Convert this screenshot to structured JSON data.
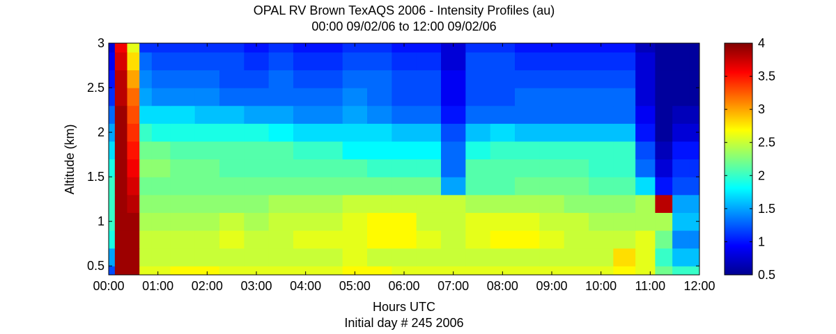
{
  "chart_data": {
    "type": "heatmap",
    "title": "OPAL RV Brown TexAQS 2006 - Intensity Profiles (au)",
    "subtitle": "00:00 09/02/06 to 12:00 09/02/06",
    "xlabel": "Hours UTC",
    "xlabel2": "Initial day # 245  2006",
    "ylabel": "Altitude (km)",
    "x_unit": "hours",
    "xlim": [
      0,
      12
    ],
    "ylim": [
      0.4,
      3.0
    ],
    "x_ticks": [
      {
        "value": 0,
        "label": "00:00"
      },
      {
        "value": 1,
        "label": "01:00"
      },
      {
        "value": 2,
        "label": "02:00"
      },
      {
        "value": 3,
        "label": "03:00"
      },
      {
        "value": 4,
        "label": "04:00"
      },
      {
        "value": 5,
        "label": "05:00"
      },
      {
        "value": 6,
        "label": "06:00"
      },
      {
        "value": 7,
        "label": "07:00"
      },
      {
        "value": 8,
        "label": "08:00"
      },
      {
        "value": 9,
        "label": "09:00"
      },
      {
        "value": 10,
        "label": "10:00"
      },
      {
        "value": 11,
        "label": "11:00"
      },
      {
        "value": 12,
        "label": "12:00"
      }
    ],
    "y_ticks": [
      {
        "value": 0.5,
        "label": "0.5"
      },
      {
        "value": 1.0,
        "label": "1"
      },
      {
        "value": 1.5,
        "label": "1.5"
      },
      {
        "value": 2.0,
        "label": "2"
      },
      {
        "value": 2.5,
        "label": "2.5"
      },
      {
        "value": 3.0,
        "label": "3"
      }
    ],
    "colorbar": {
      "range": [
        0.5,
        4.0
      ],
      "colormap": "jet",
      "ticks": [
        {
          "value": 0.5,
          "label": "0.5"
        },
        {
          "value": 1.0,
          "label": "1"
        },
        {
          "value": 1.5,
          "label": "1.5"
        },
        {
          "value": 2.0,
          "label": "2"
        },
        {
          "value": 2.5,
          "label": "2.5"
        },
        {
          "value": 3.0,
          "label": "3"
        },
        {
          "value": 3.5,
          "label": "3.5"
        },
        {
          "value": 4.0,
          "label": "4"
        }
      ]
    },
    "grid": false,
    "grid_x_hours": [
      0,
      0.25,
      0.5,
      0.75,
      1,
      1.5,
      2,
      2.5,
      3,
      3.5,
      4,
      4.5,
      5,
      5.5,
      6,
      6.5,
      7,
      7.5,
      8,
      8.5,
      9,
      9.5,
      10,
      10.5,
      10.9,
      11.3,
      11.6,
      12
    ],
    "grid_y_km": [
      0.4,
      0.6,
      0.8,
      1.0,
      1.2,
      1.4,
      1.6,
      1.8,
      2.0,
      2.2,
      2.4,
      2.6,
      2.8,
      3.0
    ],
    "intensity_grid": [
      [
        1.2,
        3.9,
        3.9,
        2.6,
        2.6,
        2.7,
        2.7,
        2.6,
        2.6,
        2.6,
        2.6,
        2.6,
        2.7,
        2.7,
        2.6,
        2.6,
        2.6,
        2.6,
        2.6,
        2.6,
        2.6,
        2.6,
        2.6,
        2.7,
        2.6,
        2.2,
        2.0,
        2.0
      ],
      [
        1.5,
        3.9,
        3.9,
        2.5,
        2.5,
        2.5,
        2.5,
        2.5,
        2.5,
        2.5,
        2.5,
        2.5,
        2.6,
        2.5,
        2.5,
        2.5,
        2.5,
        2.5,
        2.5,
        2.5,
        2.5,
        2.5,
        2.5,
        2.8,
        2.6,
        2.0,
        1.6,
        1.6
      ],
      [
        1.9,
        3.9,
        3.9,
        2.5,
        2.5,
        2.5,
        2.5,
        2.6,
        2.5,
        2.5,
        2.6,
        2.6,
        2.6,
        2.7,
        2.7,
        2.6,
        2.5,
        2.6,
        2.7,
        2.7,
        2.6,
        2.5,
        2.5,
        2.5,
        2.6,
        2.2,
        1.4,
        1.4
      ],
      [
        2.0,
        3.9,
        3.9,
        2.4,
        2.4,
        2.4,
        2.4,
        2.5,
        2.4,
        2.5,
        2.5,
        2.5,
        2.6,
        2.7,
        2.7,
        2.5,
        2.5,
        2.6,
        2.6,
        2.6,
        2.5,
        2.5,
        2.4,
        2.4,
        2.4,
        2.4,
        1.6,
        1.6
      ],
      [
        2.0,
        3.9,
        3.8,
        2.3,
        2.3,
        2.3,
        2.3,
        2.3,
        2.3,
        2.4,
        2.4,
        2.4,
        2.5,
        2.5,
        2.5,
        2.5,
        2.5,
        2.4,
        2.4,
        2.4,
        2.4,
        2.3,
        2.3,
        2.3,
        2.4,
        3.8,
        1.5,
        1.5
      ],
      [
        2.0,
        3.9,
        3.7,
        2.2,
        2.2,
        2.2,
        2.2,
        2.2,
        2.2,
        2.2,
        2.2,
        2.2,
        2.2,
        2.2,
        2.2,
        2.2,
        1.5,
        2.1,
        2.1,
        2.2,
        2.2,
        2.2,
        2.1,
        2.1,
        1.7,
        1.0,
        1.2,
        1.2
      ],
      [
        1.9,
        3.9,
        3.6,
        2.3,
        2.3,
        2.2,
        2.2,
        2.1,
        2.1,
        2.1,
        2.1,
        2.1,
        2.1,
        2.0,
        2.0,
        2.0,
        1.3,
        2.1,
        2.1,
        2.1,
        2.1,
        2.1,
        2.0,
        2.0,
        1.3,
        0.8,
        1.1,
        1.1
      ],
      [
        1.7,
        3.9,
        3.5,
        2.2,
        2.2,
        2.1,
        2.1,
        2.1,
        2.1,
        2.1,
        2.0,
        2.0,
        1.8,
        1.8,
        1.8,
        1.8,
        1.3,
        1.9,
        2.0,
        2.0,
        2.0,
        2.0,
        2.0,
        2.0,
        1.2,
        0.7,
        1.0,
        1.0
      ],
      [
        1.5,
        3.9,
        3.4,
        2.0,
        1.9,
        1.9,
        1.9,
        1.9,
        1.9,
        1.8,
        1.7,
        1.7,
        1.7,
        1.7,
        1.6,
        1.6,
        1.2,
        1.6,
        1.7,
        1.6,
        1.6,
        1.6,
        1.6,
        1.6,
        1.0,
        0.6,
        0.8,
        0.8
      ],
      [
        1.3,
        3.9,
        3.3,
        1.7,
        1.7,
        1.7,
        1.6,
        1.6,
        1.5,
        1.5,
        1.4,
        1.4,
        1.5,
        1.4,
        1.3,
        1.3,
        1.0,
        1.3,
        1.3,
        1.3,
        1.3,
        1.3,
        1.3,
        1.3,
        0.9,
        0.6,
        0.7,
        0.7
      ],
      [
        1.1,
        3.8,
        3.2,
        1.5,
        1.4,
        1.4,
        1.4,
        1.3,
        1.3,
        1.3,
        1.3,
        1.3,
        1.4,
        1.3,
        1.2,
        1.2,
        0.9,
        1.2,
        1.2,
        1.3,
        1.3,
        1.3,
        1.3,
        1.3,
        0.8,
        0.6,
        0.6,
        0.6
      ],
      [
        1.0,
        3.8,
        3.0,
        1.4,
        1.3,
        1.3,
        1.3,
        1.2,
        1.2,
        1.3,
        1.2,
        1.2,
        1.3,
        1.3,
        1.2,
        1.2,
        0.9,
        1.2,
        1.2,
        1.2,
        1.2,
        1.2,
        1.2,
        1.2,
        0.8,
        0.6,
        0.6,
        0.6
      ],
      [
        0.9,
        3.7,
        2.8,
        1.3,
        1.2,
        1.2,
        1.2,
        1.2,
        1.1,
        1.2,
        1.1,
        1.1,
        1.2,
        1.2,
        1.1,
        1.1,
        0.8,
        1.2,
        1.2,
        1.1,
        1.1,
        1.1,
        1.1,
        1.1,
        0.8,
        0.6,
        0.6,
        0.6
      ],
      [
        0.8,
        3.6,
        2.6,
        1.1,
        1.1,
        1.1,
        1.1,
        1.1,
        1.0,
        1.1,
        1.0,
        1.0,
        1.1,
        1.1,
        1.0,
        1.0,
        0.8,
        1.1,
        1.1,
        1.0,
        1.0,
        1.0,
        1.0,
        1.0,
        0.7,
        0.6,
        0.6,
        0.6
      ]
    ]
  }
}
